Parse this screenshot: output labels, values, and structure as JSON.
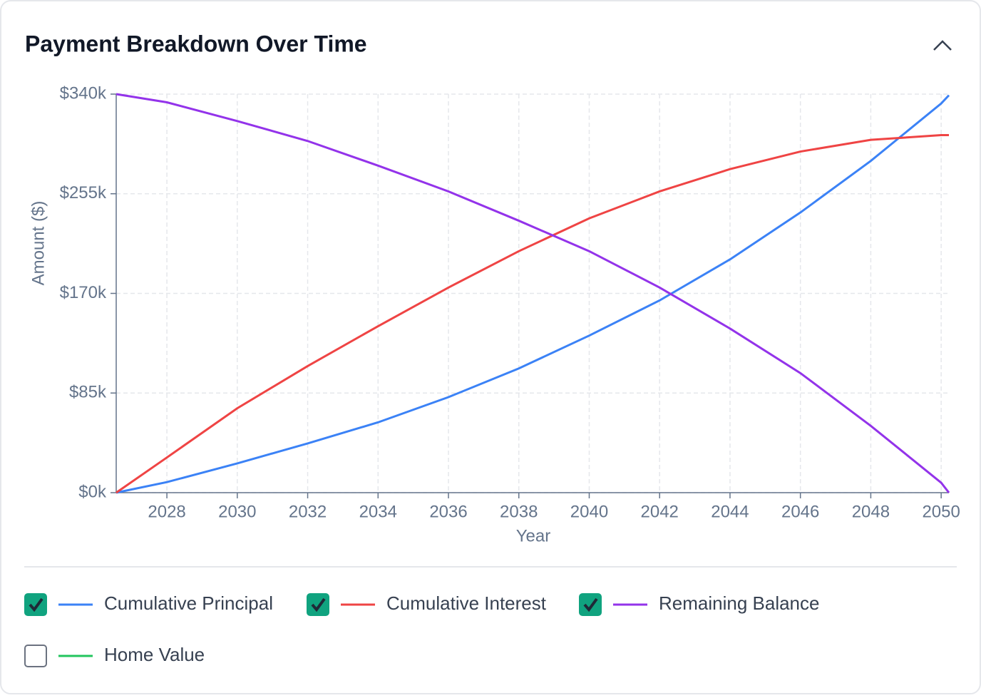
{
  "chart_data": {
    "type": "line",
    "title": "Payment Breakdown Over Time",
    "x_label": "Year",
    "y_label": "Amount ($)",
    "x": [
      2026.56,
      2028,
      2030,
      2032,
      2034,
      2036,
      2038,
      2040,
      2042,
      2044,
      2046,
      2048,
      2050,
      2050.22
    ],
    "series": [
      {
        "name": "Cumulative Principal",
        "color": "#3b82f6",
        "checked": true,
        "values": [
          0,
          9000,
          25000,
          42000,
          60000,
          81500,
          106000,
          134000,
          164000,
          199000,
          239000,
          283000,
          332000,
          339000
        ]
      },
      {
        "name": "Cumulative Interest",
        "color": "#ef4444",
        "checked": true,
        "values": [
          0,
          30000,
          72000,
          108000,
          142000,
          175000,
          206000,
          234000,
          257000,
          276000,
          291000,
          301000,
          305000,
          305000
        ]
      },
      {
        "name": "Remaining Balance",
        "color": "#9333ea",
        "checked": true,
        "values": [
          340000,
          333000,
          317000,
          300000,
          279000,
          257000,
          232000,
          206000,
          175000,
          140000,
          102000,
          57000,
          8500,
          0
        ]
      },
      {
        "name": "Home Value",
        "color": "#22c55e",
        "checked": false
      }
    ],
    "xlim": [
      2026.56,
      2050.22
    ],
    "xticks": [
      2028,
      2030,
      2032,
      2034,
      2036,
      2038,
      2040,
      2042,
      2044,
      2046,
      2048,
      2050
    ],
    "ylim": [
      0,
      340000
    ],
    "yticks": [
      {
        "value": 0,
        "label": "$0k"
      },
      {
        "value": 85000,
        "label": "$85k"
      },
      {
        "value": 170000,
        "label": "$170k"
      },
      {
        "value": 255000,
        "label": "$255k"
      },
      {
        "value": 340000,
        "label": "$340k"
      }
    ],
    "grid": true
  }
}
